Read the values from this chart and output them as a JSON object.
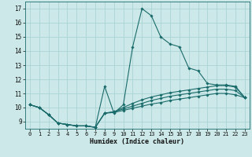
{
  "xlabel": "Humidex (Indice chaleur)",
  "bg_color": "#cce8e8",
  "grid_color": "#aad4d4",
  "line_color": "#1a6b6b",
  "x_ticks": [
    0,
    1,
    2,
    3,
    4,
    5,
    6,
    7,
    8,
    9,
    10,
    11,
    12,
    13,
    14,
    15,
    16,
    17,
    18,
    19,
    20,
    21,
    22,
    23
  ],
  "y_ticks": [
    9,
    10,
    11,
    12,
    13,
    14,
    15,
    16,
    17
  ],
  "ylim": [
    8.5,
    17.5
  ],
  "xlim": [
    -0.5,
    23.5
  ],
  "series": [
    [
      10.2,
      10.0,
      9.5,
      8.9,
      8.8,
      8.7,
      8.7,
      8.6,
      11.5,
      9.6,
      10.2,
      14.3,
      17.0,
      16.5,
      15.0,
      14.5,
      14.3,
      12.8,
      12.6,
      11.7,
      11.6,
      11.6,
      11.5,
      10.7
    ],
    [
      10.2,
      10.0,
      9.5,
      8.9,
      8.8,
      8.7,
      8.7,
      8.6,
      9.6,
      9.7,
      10.0,
      10.3,
      10.55,
      10.75,
      10.9,
      11.05,
      11.15,
      11.25,
      11.35,
      11.45,
      11.55,
      11.55,
      11.45,
      10.7
    ],
    [
      10.2,
      10.0,
      9.5,
      8.9,
      8.8,
      8.7,
      8.7,
      8.6,
      9.6,
      9.7,
      9.9,
      10.1,
      10.3,
      10.5,
      10.65,
      10.8,
      10.9,
      11.0,
      11.1,
      11.2,
      11.3,
      11.3,
      11.2,
      10.7
    ],
    [
      10.2,
      10.0,
      9.5,
      8.9,
      8.8,
      8.7,
      8.7,
      8.6,
      9.6,
      9.65,
      9.8,
      9.95,
      10.1,
      10.25,
      10.35,
      10.5,
      10.6,
      10.7,
      10.8,
      10.9,
      11.0,
      11.0,
      10.9,
      10.7
    ]
  ]
}
